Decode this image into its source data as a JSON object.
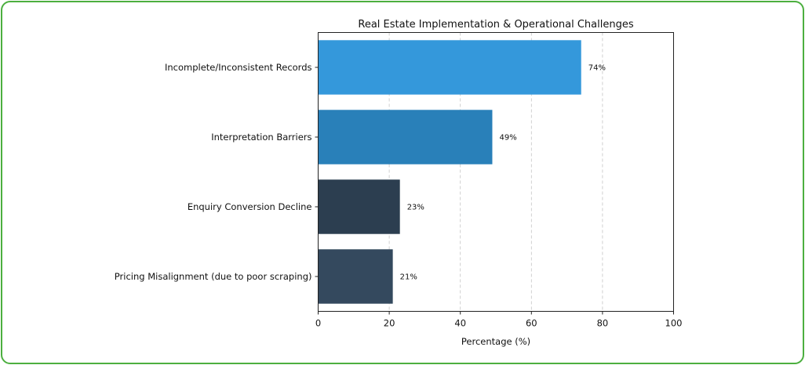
{
  "chart_data": {
    "type": "bar",
    "orientation": "horizontal",
    "title": "Real Estate Implementation & Operational Challenges",
    "xlabel": "Percentage (%)",
    "ylabel": "",
    "xlim": [
      0,
      100
    ],
    "xticks": [
      0,
      20,
      40,
      60,
      80,
      100
    ],
    "grid": "vertical dashed",
    "categories": [
      "Incomplete/Inconsistent Records",
      "Interpretation Barriers",
      "Enquiry Conversion Decline",
      "Pricing Misalignment (due to poor scraping)"
    ],
    "values": [
      74,
      49,
      23,
      21
    ],
    "value_labels": [
      "74%",
      "49%",
      "23%",
      "21%"
    ],
    "colors": [
      "#3498db",
      "#2980b9",
      "#2c3e50",
      "#34495e"
    ]
  }
}
